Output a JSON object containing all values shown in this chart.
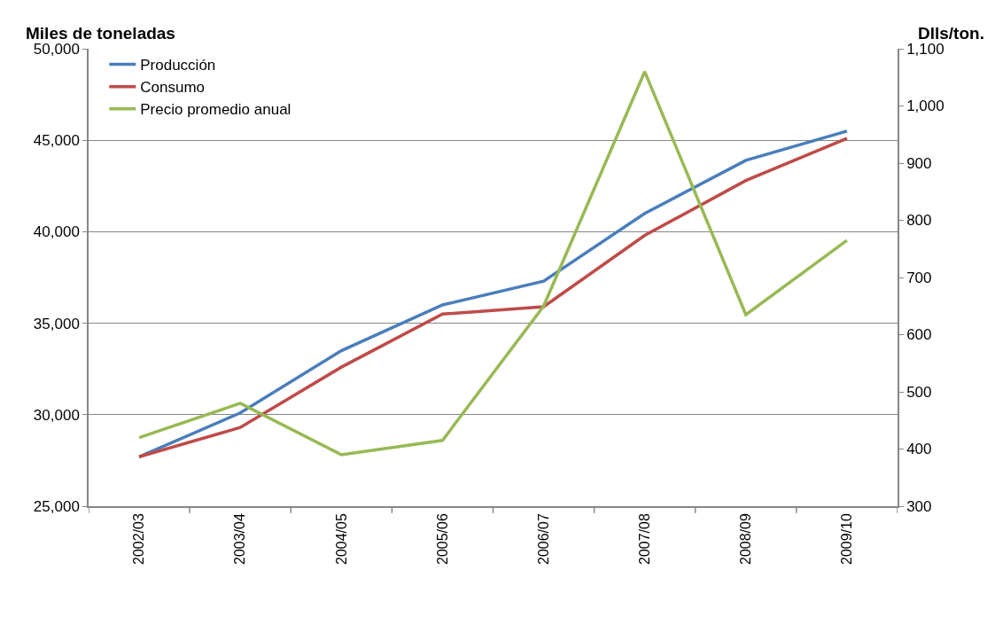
{
  "chart_data": {
    "type": "line",
    "ylabel": "Miles de toneladas",
    "y2label": "Dlls/ton.",
    "categories": [
      "2002/03",
      "2003/04",
      "2004/05",
      "2005/06",
      "2006/07",
      "2007/08",
      "2008/09",
      "2009/10"
    ],
    "series": [
      {
        "name": "Producción",
        "color": "#4a7ebb",
        "values": [
          27700,
          30100,
          33500,
          36000,
          37300,
          41000,
          43900,
          45500
        ]
      },
      {
        "name": "Consumo",
        "color": "#be4b48",
        "values": [
          27700,
          29300,
          32600,
          35500,
          35900,
          39800,
          42800,
          45100
        ]
      },
      {
        "name": "Precio promedio anual",
        "color": "#98b954",
        "axis": "y2",
        "values": [
          420,
          480,
          390,
          415,
          650,
          1060,
          635,
          765
        ]
      }
    ],
    "ylim": [
      25000,
      50000
    ],
    "yticks": [
      {
        "value": 25000,
        "label": "25,000"
      },
      {
        "value": 30000,
        "label": "30,000"
      },
      {
        "value": 35000,
        "label": "35,000"
      },
      {
        "value": 40000,
        "label": "40,000"
      },
      {
        "value": 45000,
        "label": "45,000"
      },
      {
        "value": 50000,
        "label": "50,000"
      }
    ],
    "y2lim": [
      300,
      1100
    ],
    "y2ticks": [
      300,
      400,
      500,
      600,
      700,
      800,
      900,
      {
        "value": 1000,
        "label": "1,000"
      },
      {
        "value": 1100,
        "label": "1,100"
      }
    ],
    "grid": "y",
    "legend": "top left",
    "marker": "none",
    "line_style": "solid"
  }
}
